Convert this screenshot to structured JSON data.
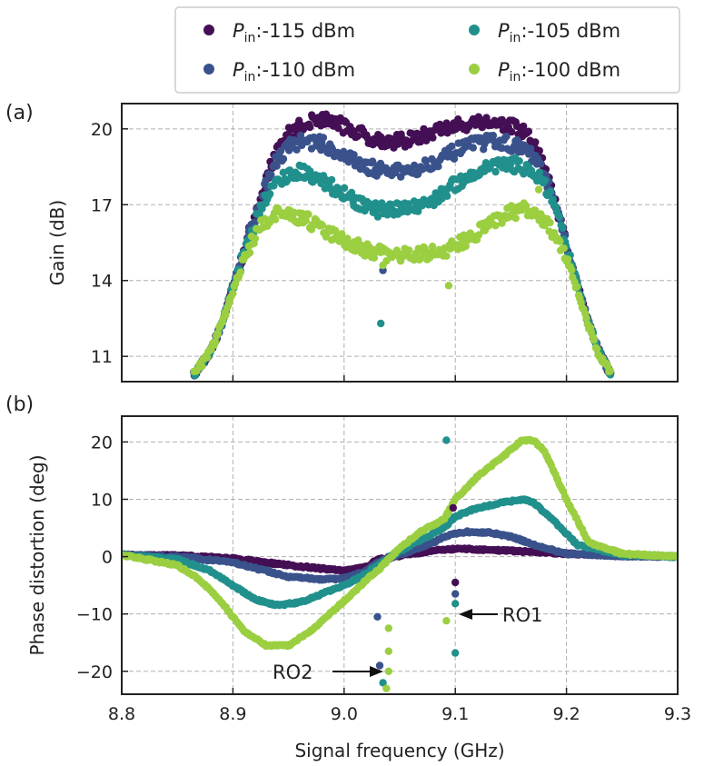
{
  "chart_data": [
    {
      "type": "scatter",
      "panel_label": "(a)",
      "ylabel": "Gain (dB)",
      "xlabel": "",
      "xlim": [
        8.8,
        9.3
      ],
      "ylim": [
        10.0,
        21.0
      ],
      "yticks": [
        "11",
        "14",
        "17",
        "20"
      ],
      "ytick_values": [
        11,
        14,
        17,
        20
      ],
      "xticks": [
        8.8,
        8.9,
        9.0,
        9.1,
        9.2,
        9.3
      ],
      "grid": true,
      "series": [
        {
          "name": "-115 dBm",
          "color": "#440f54",
          "x": [
            8.865,
            8.88,
            8.89,
            8.9,
            8.91,
            8.92,
            8.93,
            8.94,
            8.95,
            8.96,
            8.97,
            8.98,
            8.99,
            9.0,
            9.01,
            9.02,
            9.03,
            9.04,
            9.05,
            9.06,
            9.07,
            9.08,
            9.09,
            9.1,
            9.11,
            9.12,
            9.13,
            9.14,
            9.15,
            9.16,
            9.17,
            9.18,
            9.19,
            9.2,
            9.21,
            9.22,
            9.23,
            9.24
          ],
          "y": [
            10.3,
            11.2,
            12.3,
            13.8,
            15.2,
            16.6,
            18.0,
            19.2,
            19.8,
            20.1,
            20.3,
            20.4,
            20.3,
            20.1,
            19.9,
            19.7,
            19.6,
            19.5,
            19.5,
            19.6,
            19.7,
            19.9,
            20.0,
            20.1,
            20.2,
            20.3,
            20.3,
            20.2,
            20.1,
            19.9,
            19.5,
            18.5,
            17.0,
            15.4,
            13.8,
            12.3,
            11.1,
            10.3
          ]
        },
        {
          "name": "-110 dBm",
          "color": "#3a528b",
          "x": [
            8.865,
            8.88,
            8.89,
            8.9,
            8.91,
            8.92,
            8.93,
            8.94,
            8.95,
            8.96,
            8.97,
            8.98,
            8.99,
            9.0,
            9.01,
            9.02,
            9.03,
            9.04,
            9.05,
            9.06,
            9.07,
            9.08,
            9.09,
            9.1,
            9.11,
            9.12,
            9.13,
            9.14,
            9.15,
            9.16,
            9.17,
            9.18,
            9.19,
            9.2,
            9.21,
            9.22,
            9.23,
            9.24
          ],
          "y": [
            10.3,
            11.2,
            12.3,
            13.8,
            15.2,
            16.5,
            17.8,
            18.8,
            19.3,
            19.5,
            19.5,
            19.4,
            19.2,
            18.9,
            18.7,
            18.5,
            18.4,
            18.3,
            18.3,
            18.4,
            18.5,
            18.7,
            18.9,
            19.1,
            19.3,
            19.4,
            19.5,
            19.5,
            19.4,
            19.2,
            18.9,
            18.2,
            16.9,
            15.4,
            13.8,
            12.3,
            11.1,
            10.3
          ]
        },
        {
          "name": "-105 dBm",
          "color": "#21908c",
          "x": [
            8.865,
            8.88,
            8.89,
            8.9,
            8.91,
            8.92,
            8.93,
            8.94,
            8.95,
            8.96,
            8.97,
            8.98,
            8.99,
            9.0,
            9.01,
            9.02,
            9.03,
            9.04,
            9.05,
            9.06,
            9.07,
            9.08,
            9.09,
            9.1,
            9.11,
            9.12,
            9.13,
            9.14,
            9.15,
            9.16,
            9.17,
            9.18,
            9.19,
            9.2,
            9.21,
            9.22,
            9.23,
            9.24
          ],
          "y": [
            10.3,
            11.2,
            12.3,
            13.7,
            15.1,
            16.3,
            17.3,
            17.9,
            18.2,
            18.3,
            18.2,
            18.0,
            17.7,
            17.4,
            17.1,
            16.9,
            16.8,
            16.8,
            16.8,
            16.9,
            17.0,
            17.2,
            17.5,
            17.8,
            18.1,
            18.3,
            18.5,
            18.6,
            18.6,
            18.5,
            18.3,
            17.8,
            16.8,
            15.3,
            13.8,
            12.3,
            11.1,
            10.3
          ]
        },
        {
          "name": "-100 dBm",
          "color": "#9bcf41",
          "x": [
            8.865,
            8.88,
            8.89,
            8.9,
            8.91,
            8.92,
            8.93,
            8.94,
            8.95,
            8.96,
            8.97,
            8.98,
            8.99,
            9.0,
            9.01,
            9.02,
            9.03,
            9.04,
            9.05,
            9.06,
            9.07,
            9.08,
            9.09,
            9.1,
            9.11,
            9.12,
            9.13,
            9.14,
            9.15,
            9.16,
            9.17,
            9.18,
            9.19,
            9.2,
            9.21,
            9.22,
            9.23,
            9.24
          ],
          "y": [
            10.3,
            11.2,
            12.3,
            13.6,
            14.8,
            15.8,
            16.4,
            16.6,
            16.6,
            16.5,
            16.3,
            16.0,
            15.8,
            15.6,
            15.4,
            15.2,
            15.1,
            15.0,
            15.0,
            15.0,
            15.1,
            15.1,
            15.2,
            15.4,
            15.6,
            15.9,
            16.2,
            16.5,
            16.7,
            16.8,
            16.7,
            16.3,
            15.8,
            14.9,
            13.6,
            12.2,
            11.0,
            10.3
          ]
        }
      ],
      "outliers": [
        {
          "series": "-105 dBm",
          "x": 9.033,
          "y": 12.3
        },
        {
          "series": "-110 dBm",
          "x": 9.035,
          "y": 14.4
        },
        {
          "series": "-100 dBm",
          "x": 9.035,
          "y": 14.6
        },
        {
          "series": "-100 dBm",
          "x": 9.094,
          "y": 13.8
        },
        {
          "series": "-100 dBm",
          "x": 9.175,
          "y": 17.6
        }
      ]
    },
    {
      "type": "scatter",
      "panel_label": "(b)",
      "ylabel": "Phase distortion (deg)",
      "xlabel": "Signal frequency (GHz)",
      "xlim": [
        8.8,
        9.3
      ],
      "ylim": [
        -24.0,
        24.5
      ],
      "yticks": [
        "−20",
        "−10",
        "0",
        "10",
        "20"
      ],
      "ytick_values": [
        -20,
        -10,
        0,
        10,
        20
      ],
      "xticks": [
        "8.8",
        "8.9",
        "9.0",
        "9.1",
        "9.2",
        "9.3"
      ],
      "xtick_values": [
        8.8,
        8.9,
        9.0,
        9.1,
        9.2,
        9.3
      ],
      "grid": true,
      "series": [
        {
          "name": "-115 dBm",
          "color": "#440f54",
          "x": [
            8.8,
            8.85,
            8.9,
            8.95,
            9.0,
            9.02,
            9.03,
            9.06,
            9.08,
            9.09,
            9.1,
            9.11,
            9.15,
            9.2,
            9.25,
            9.3
          ],
          "y": [
            0.3,
            0.2,
            -0.3,
            -1.5,
            -2.5,
            -1.8,
            -0.5,
            0.5,
            1.0,
            1.2,
            1.3,
            1.3,
            1.0,
            0.5,
            0.2,
            0.0
          ]
        },
        {
          "name": "-110 dBm",
          "color": "#3a528b",
          "x": [
            8.8,
            8.85,
            8.9,
            8.95,
            8.98,
            9.0,
            9.02,
            9.03,
            9.06,
            9.08,
            9.09,
            9.1,
            9.11,
            9.13,
            9.15,
            9.18,
            9.2,
            9.25,
            9.3
          ],
          "y": [
            0.3,
            0.0,
            -1.0,
            -3.5,
            -4.0,
            -3.8,
            -2.5,
            -1.0,
            1.0,
            2.5,
            3.5,
            4.0,
            4.3,
            4.2,
            3.5,
            1.5,
            0.5,
            0.1,
            0.0
          ]
        },
        {
          "name": "-105 dBm",
          "color": "#21908c",
          "x": [
            8.8,
            8.85,
            8.88,
            8.9,
            8.92,
            8.94,
            8.96,
            8.98,
            9.0,
            9.02,
            9.03,
            9.05,
            9.07,
            9.09,
            9.1,
            9.12,
            9.14,
            9.16,
            9.17,
            9.19,
            9.21,
            9.25,
            9.3
          ],
          "y": [
            0.3,
            -0.5,
            -2.5,
            -5.0,
            -7.5,
            -8.5,
            -8.0,
            -6.5,
            -5.0,
            -3.0,
            -1.5,
            1.0,
            3.0,
            5.0,
            7.0,
            8.5,
            9.3,
            10.0,
            9.5,
            6.0,
            2.0,
            0.3,
            0.0
          ]
        },
        {
          "name": "-100 dBm",
          "color": "#9bcf41",
          "x": [
            8.8,
            8.85,
            8.87,
            8.89,
            8.91,
            8.93,
            8.95,
            8.97,
            8.99,
            9.01,
            9.02,
            9.03,
            9.05,
            9.07,
            9.09,
            9.1,
            9.12,
            9.14,
            9.16,
            9.17,
            9.18,
            9.2,
            9.22,
            9.25,
            9.3
          ],
          "y": [
            0.3,
            -1.5,
            -4.0,
            -8.0,
            -13.0,
            -15.5,
            -15.5,
            -13.0,
            -9.5,
            -6.0,
            -4.0,
            -2.5,
            1.5,
            4.5,
            6.5,
            10.0,
            14.0,
            17.0,
            20.3,
            20.3,
            18.5,
            10.0,
            2.5,
            0.5,
            0.0
          ]
        }
      ],
      "outliers": [
        {
          "series": "-115 dBm",
          "x": 9.098,
          "y": 8.5
        },
        {
          "series": "-115 dBm",
          "x": 9.1,
          "y": -4.5
        },
        {
          "series": "-110 dBm",
          "x": 9.03,
          "y": -10.5
        },
        {
          "series": "-110 dBm",
          "x": 9.032,
          "y": -19.0
        },
        {
          "series": "-110 dBm",
          "x": 9.1,
          "y": -6.5
        },
        {
          "series": "-105 dBm",
          "x": 9.092,
          "y": 20.3
        },
        {
          "series": "-105 dBm",
          "x": 9.035,
          "y": -22.0
        },
        {
          "series": "-105 dBm",
          "x": 9.1,
          "y": -16.8
        },
        {
          "series": "-105 dBm",
          "x": 9.1,
          "y": -8.2
        },
        {
          "series": "-100 dBm",
          "x": 9.038,
          "y": -23.0
        },
        {
          "series": "-100 dBm",
          "x": 9.04,
          "y": -20.0
        },
        {
          "series": "-100 dBm",
          "x": 9.04,
          "y": -16.5
        },
        {
          "series": "-100 dBm",
          "x": 9.04,
          "y": -12.5
        },
        {
          "series": "-100 dBm",
          "x": 9.092,
          "y": -11.2
        }
      ],
      "annotations": [
        {
          "text": "RO1",
          "x": 9.1,
          "y": -9.8
        },
        {
          "text": "RO2",
          "x": 9.037,
          "y": -20.0
        }
      ]
    }
  ],
  "legend": {
    "placement": "top",
    "prefix": "P",
    "prefix_sub": "in",
    "entries": [
      ":-115 dBm",
      ":-110 dBm",
      ":-105 dBm",
      ":-100 dBm"
    ],
    "colors": [
      "#440f54",
      "#3a528b",
      "#21908c",
      "#9bcf41"
    ]
  }
}
